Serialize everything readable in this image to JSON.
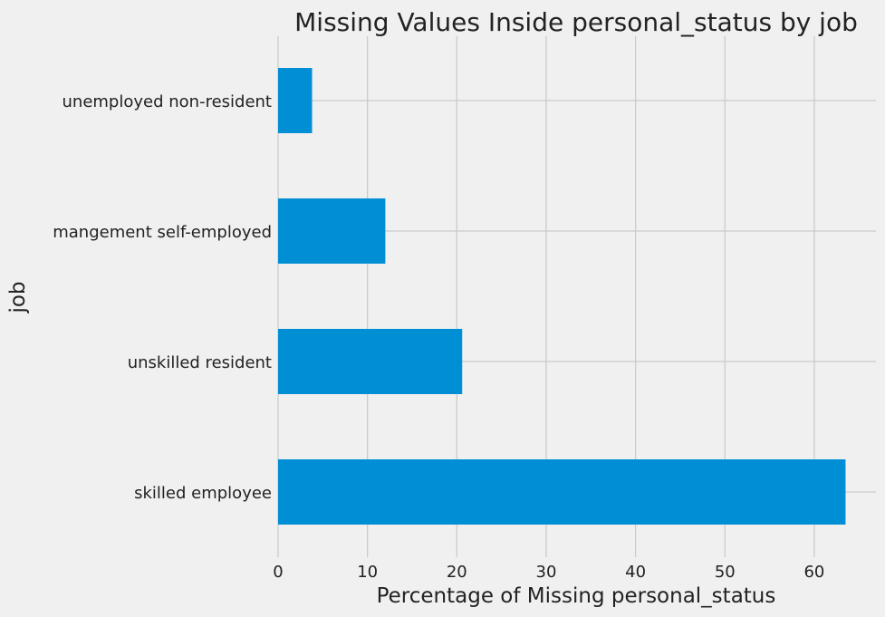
{
  "chart_data": {
    "type": "bar",
    "orientation": "horizontal",
    "title": "Missing Values Inside personal_status by job",
    "xlabel": "Percentage of Missing personal_status",
    "ylabel": "job",
    "categories": [
      "skilled employee",
      "unskilled resident",
      "mangement self-employed",
      "unemployed non-resident"
    ],
    "values": [
      63.5,
      20.6,
      12.0,
      3.8
    ],
    "xlim": [
      0,
      66.9
    ],
    "xticks": [
      0,
      10,
      20,
      30,
      40,
      50,
      60
    ],
    "grid": true,
    "legend": "none"
  },
  "colors": {
    "background": "#f0f0f0",
    "bar": "#008fd5",
    "grid": "#cbcbcb",
    "text": "#222222"
  }
}
